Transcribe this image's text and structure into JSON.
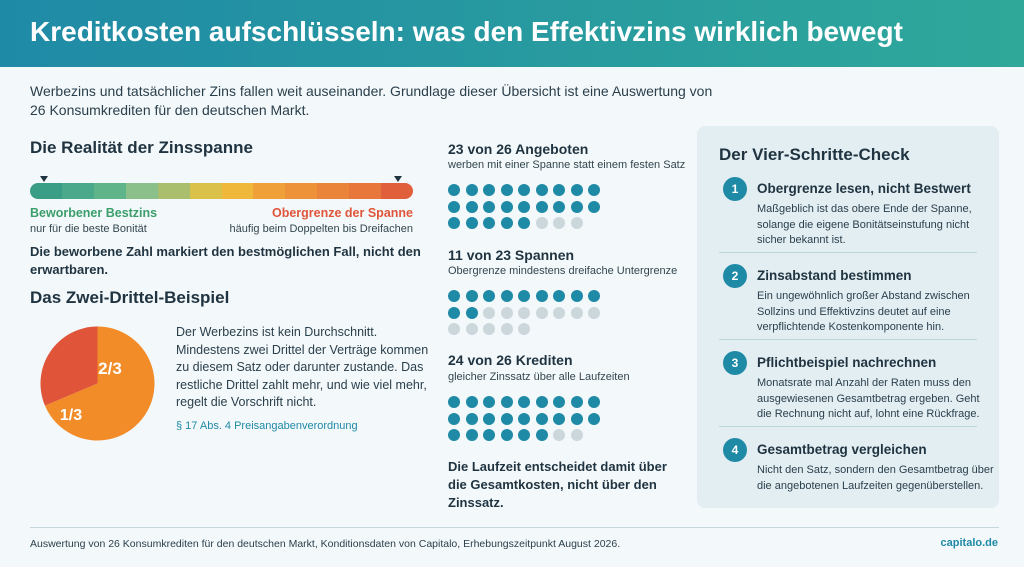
{
  "header": {
    "title": "Kreditkosten aufschlüsseln: was den Effektivzins wirklich bewegt"
  },
  "intro": "Werbezins und tatsächlicher Zins fallen weit auseinander. Grundlage dieser Übersicht ist eine Auswertung von 26 Konsumkrediten für den deutschen Markt.",
  "spread": {
    "title": "Die Realität der Zinsspanne",
    "low_label": "Beworbener Bestzins",
    "low_sub": "nur für die beste Bonität",
    "high_label": "Obergrenze der Spanne",
    "high_sub": "häufig beim Doppelten bis Dreifachen",
    "note": "Die beworbene Zahl markiert den bestmöglichen Fall, nicht den erwartbaren.",
    "colors": [
      "#3a9e86",
      "#4aa98a",
      "#5fb48a",
      "#8cc08a",
      "#a9bf6e",
      "#d9c14a",
      "#f0b83a",
      "#f0a038",
      "#ee923a",
      "#ea843b",
      "#e8773c",
      "#e0603c"
    ]
  },
  "pie": {
    "title": "Das Zwei-Drittel-Beispiel",
    "big_label": "2/3",
    "small_label": "1/3",
    "big_share": 0.6667,
    "big_color": "#f28c28",
    "small_color": "#e0553a",
    "text": "Der Werbezins ist kein Durchschnitt. Mindestens zwei Drittel der Verträge kommen zu diesem Satz oder darunter zustande. Das restliche Drittel zahlt mehr, und wie viel mehr, regelt die Vorschrift nicht.",
    "source": "§ 17 Abs. 4 Preisangabenverordnung"
  },
  "stats": [
    {
      "title": "23 von 26 Angeboten",
      "sub": "werben mit einer Spanne statt einem festen Satz",
      "on": 23,
      "total": 26
    },
    {
      "title": "11 von 23 Spannen",
      "sub": "Obergrenze mindestens dreifache Untergrenze",
      "on": 11,
      "total": 23
    },
    {
      "title": "24 von 26 Krediten",
      "sub": "gleicher Zinssatz über alle Laufzeiten",
      "on": 24,
      "total": 26
    }
  ],
  "mid_note": "Die Laufzeit entscheidet damit über die Gesamtkosten, nicht über den Zinssatz.",
  "checklist": {
    "title": "Der Vier-Schritte-Check",
    "steps": [
      {
        "num": "1",
        "title": "Obergrenze lesen, nicht Bestwert",
        "body": "Maßgeblich ist das obere Ende der Spanne, solange die eigene Bonitätseinstufung nicht sicher bekannt ist."
      },
      {
        "num": "2",
        "title": "Zinsabstand bestimmen",
        "body": "Ein ungewöhnlich großer Abstand zwischen Sollzins und Effektivzins deutet auf eine verpflichtende Kostenkomponente hin."
      },
      {
        "num": "3",
        "title": "Pflichtbeispiel nachrechnen",
        "body": "Monatsrate mal Anzahl der Raten muss den ausgewiesenen Gesamtbetrag ergeben. Geht die Rechnung nicht auf, lohnt eine Rückfrage."
      },
      {
        "num": "4",
        "title": "Gesamtbetrag vergleichen",
        "body": "Nicht den Satz, sondern den Gesamtbetrag über die angebotenen Laufzeiten gegenüberstellen."
      }
    ]
  },
  "footer": {
    "text": "Auswertung von 26 Konsumkrediten für den deutschen Markt, Konditionsdaten von Capitalo, Erhebungszeitpunkt August 2026.",
    "brand": "capitalo.de"
  },
  "colors": {
    "accent": "#1f8aa6",
    "dot_off": "#ccd7dc"
  }
}
